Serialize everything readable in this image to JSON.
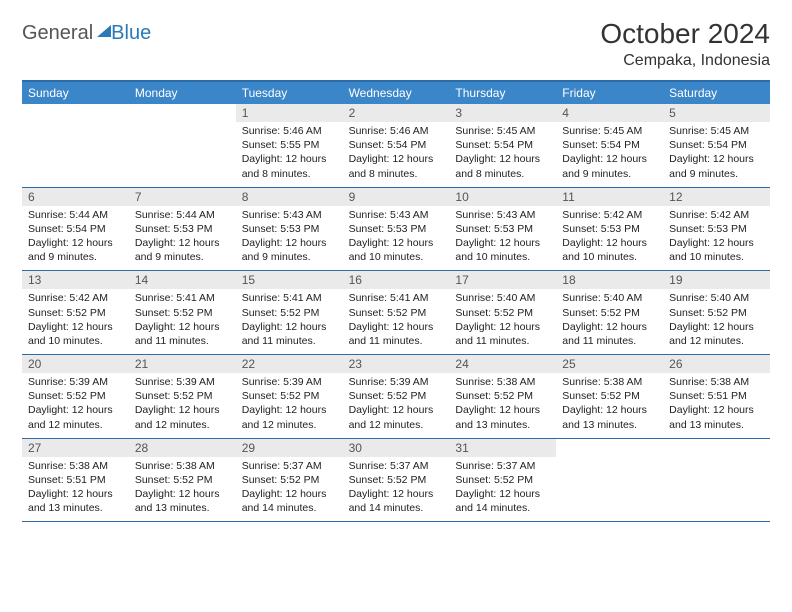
{
  "logo": {
    "text1": "General",
    "text2": "Blue"
  },
  "title": "October 2024",
  "location": "Cempaka, Indonesia",
  "colors": {
    "header_bg": "#3a86c8",
    "header_border": "#2a6da8",
    "daynum_bg": "#eaeaea",
    "accent": "#2a7ab9"
  },
  "dayHeaders": [
    "Sunday",
    "Monday",
    "Tuesday",
    "Wednesday",
    "Thursday",
    "Friday",
    "Saturday"
  ],
  "weeks": [
    [
      {
        "n": "",
        "sr": "",
        "ss": "",
        "dl": ""
      },
      {
        "n": "",
        "sr": "",
        "ss": "",
        "dl": ""
      },
      {
        "n": "1",
        "sr": "Sunrise: 5:46 AM",
        "ss": "Sunset: 5:55 PM",
        "dl": "Daylight: 12 hours and 8 minutes."
      },
      {
        "n": "2",
        "sr": "Sunrise: 5:46 AM",
        "ss": "Sunset: 5:54 PM",
        "dl": "Daylight: 12 hours and 8 minutes."
      },
      {
        "n": "3",
        "sr": "Sunrise: 5:45 AM",
        "ss": "Sunset: 5:54 PM",
        "dl": "Daylight: 12 hours and 8 minutes."
      },
      {
        "n": "4",
        "sr": "Sunrise: 5:45 AM",
        "ss": "Sunset: 5:54 PM",
        "dl": "Daylight: 12 hours and 9 minutes."
      },
      {
        "n": "5",
        "sr": "Sunrise: 5:45 AM",
        "ss": "Sunset: 5:54 PM",
        "dl": "Daylight: 12 hours and 9 minutes."
      }
    ],
    [
      {
        "n": "6",
        "sr": "Sunrise: 5:44 AM",
        "ss": "Sunset: 5:54 PM",
        "dl": "Daylight: 12 hours and 9 minutes."
      },
      {
        "n": "7",
        "sr": "Sunrise: 5:44 AM",
        "ss": "Sunset: 5:53 PM",
        "dl": "Daylight: 12 hours and 9 minutes."
      },
      {
        "n": "8",
        "sr": "Sunrise: 5:43 AM",
        "ss": "Sunset: 5:53 PM",
        "dl": "Daylight: 12 hours and 9 minutes."
      },
      {
        "n": "9",
        "sr": "Sunrise: 5:43 AM",
        "ss": "Sunset: 5:53 PM",
        "dl": "Daylight: 12 hours and 10 minutes."
      },
      {
        "n": "10",
        "sr": "Sunrise: 5:43 AM",
        "ss": "Sunset: 5:53 PM",
        "dl": "Daylight: 12 hours and 10 minutes."
      },
      {
        "n": "11",
        "sr": "Sunrise: 5:42 AM",
        "ss": "Sunset: 5:53 PM",
        "dl": "Daylight: 12 hours and 10 minutes."
      },
      {
        "n": "12",
        "sr": "Sunrise: 5:42 AM",
        "ss": "Sunset: 5:53 PM",
        "dl": "Daylight: 12 hours and 10 minutes."
      }
    ],
    [
      {
        "n": "13",
        "sr": "Sunrise: 5:42 AM",
        "ss": "Sunset: 5:52 PM",
        "dl": "Daylight: 12 hours and 10 minutes."
      },
      {
        "n": "14",
        "sr": "Sunrise: 5:41 AM",
        "ss": "Sunset: 5:52 PM",
        "dl": "Daylight: 12 hours and 11 minutes."
      },
      {
        "n": "15",
        "sr": "Sunrise: 5:41 AM",
        "ss": "Sunset: 5:52 PM",
        "dl": "Daylight: 12 hours and 11 minutes."
      },
      {
        "n": "16",
        "sr": "Sunrise: 5:41 AM",
        "ss": "Sunset: 5:52 PM",
        "dl": "Daylight: 12 hours and 11 minutes."
      },
      {
        "n": "17",
        "sr": "Sunrise: 5:40 AM",
        "ss": "Sunset: 5:52 PM",
        "dl": "Daylight: 12 hours and 11 minutes."
      },
      {
        "n": "18",
        "sr": "Sunrise: 5:40 AM",
        "ss": "Sunset: 5:52 PM",
        "dl": "Daylight: 12 hours and 11 minutes."
      },
      {
        "n": "19",
        "sr": "Sunrise: 5:40 AM",
        "ss": "Sunset: 5:52 PM",
        "dl": "Daylight: 12 hours and 12 minutes."
      }
    ],
    [
      {
        "n": "20",
        "sr": "Sunrise: 5:39 AM",
        "ss": "Sunset: 5:52 PM",
        "dl": "Daylight: 12 hours and 12 minutes."
      },
      {
        "n": "21",
        "sr": "Sunrise: 5:39 AM",
        "ss": "Sunset: 5:52 PM",
        "dl": "Daylight: 12 hours and 12 minutes."
      },
      {
        "n": "22",
        "sr": "Sunrise: 5:39 AM",
        "ss": "Sunset: 5:52 PM",
        "dl": "Daylight: 12 hours and 12 minutes."
      },
      {
        "n": "23",
        "sr": "Sunrise: 5:39 AM",
        "ss": "Sunset: 5:52 PM",
        "dl": "Daylight: 12 hours and 12 minutes."
      },
      {
        "n": "24",
        "sr": "Sunrise: 5:38 AM",
        "ss": "Sunset: 5:52 PM",
        "dl": "Daylight: 12 hours and 13 minutes."
      },
      {
        "n": "25",
        "sr": "Sunrise: 5:38 AM",
        "ss": "Sunset: 5:52 PM",
        "dl": "Daylight: 12 hours and 13 minutes."
      },
      {
        "n": "26",
        "sr": "Sunrise: 5:38 AM",
        "ss": "Sunset: 5:51 PM",
        "dl": "Daylight: 12 hours and 13 minutes."
      }
    ],
    [
      {
        "n": "27",
        "sr": "Sunrise: 5:38 AM",
        "ss": "Sunset: 5:51 PM",
        "dl": "Daylight: 12 hours and 13 minutes."
      },
      {
        "n": "28",
        "sr": "Sunrise: 5:38 AM",
        "ss": "Sunset: 5:52 PM",
        "dl": "Daylight: 12 hours and 13 minutes."
      },
      {
        "n": "29",
        "sr": "Sunrise: 5:37 AM",
        "ss": "Sunset: 5:52 PM",
        "dl": "Daylight: 12 hours and 14 minutes."
      },
      {
        "n": "30",
        "sr": "Sunrise: 5:37 AM",
        "ss": "Sunset: 5:52 PM",
        "dl": "Daylight: 12 hours and 14 minutes."
      },
      {
        "n": "31",
        "sr": "Sunrise: 5:37 AM",
        "ss": "Sunset: 5:52 PM",
        "dl": "Daylight: 12 hours and 14 minutes."
      },
      {
        "n": "",
        "sr": "",
        "ss": "",
        "dl": ""
      },
      {
        "n": "",
        "sr": "",
        "ss": "",
        "dl": ""
      }
    ]
  ]
}
